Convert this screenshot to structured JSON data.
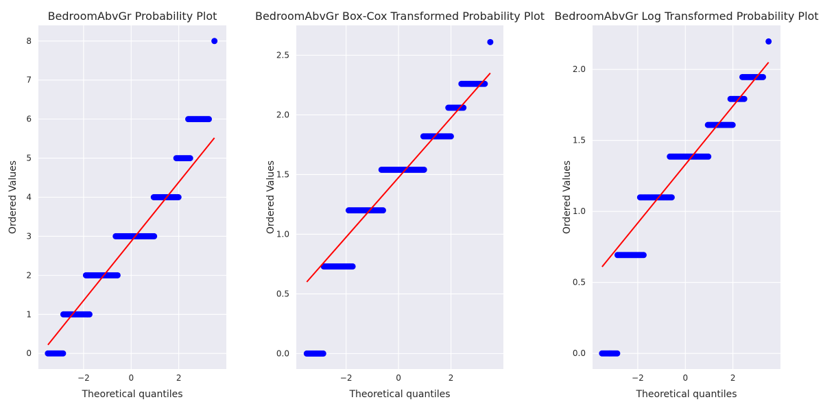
{
  "chart_data": [
    {
      "type": "scatter",
      "title": "BedroomAbvGr Probability Plot",
      "xlabel": "Theoretical quantiles",
      "ylabel": "Ordered Values",
      "xlim": [
        -3.9,
        4.0
      ],
      "ylim": [
        -0.4,
        8.4
      ],
      "xticks": [
        -2,
        0,
        2
      ],
      "xtick_labels": [
        "−2",
        "0",
        "2"
      ],
      "yticks": [
        0,
        1,
        2,
        3,
        4,
        5,
        6,
        7,
        8
      ],
      "ytick_labels": [
        "0",
        "1",
        "2",
        "3",
        "4",
        "5",
        "6",
        "7",
        "8"
      ],
      "grid": true,
      "point_color": "#0000ff",
      "line_color": "#ff0000",
      "series": [
        {
          "values_steps": [
            {
              "y": 0,
              "x_from": -3.5,
              "x_to": -2.85
            },
            {
              "y": 1,
              "x_from": -2.85,
              "x_to": -1.75
            },
            {
              "y": 2,
              "x_from": -1.9,
              "x_to": -0.55
            },
            {
              "y": 3,
              "x_from": -0.65,
              "x_to": 1.0
            },
            {
              "y": 4,
              "x_from": 0.95,
              "x_to": 2.0
            },
            {
              "y": 5,
              "x_from": 1.9,
              "x_to": 2.5
            },
            {
              "y": 6,
              "x_from": 2.4,
              "x_to": 3.3
            }
          ],
          "outliers": [
            {
              "x": 3.5,
              "y": 8
            }
          ]
        }
      ],
      "fit_line": {
        "x": [
          -3.5,
          3.5
        ],
        "y": [
          0.22,
          5.52
        ]
      }
    },
    {
      "type": "scatter",
      "title": "BedroomAbvGr Box-Cox Transformed Probability Plot",
      "xlabel": "Theoretical quantiles",
      "ylabel": "Ordered Values",
      "xlim": [
        -3.9,
        4.0
      ],
      "ylim": [
        -0.13,
        2.75
      ],
      "xticks": [
        -2,
        0,
        2
      ],
      "xtick_labels": [
        "−2",
        "0",
        "2"
      ],
      "yticks": [
        0.0,
        0.5,
        1.0,
        1.5,
        2.0,
        2.5
      ],
      "ytick_labels": [
        "0.0",
        "0.5",
        "1.0",
        "1.5",
        "2.0",
        "2.5"
      ],
      "grid": true,
      "point_color": "#0000ff",
      "line_color": "#ff0000",
      "series": [
        {
          "values_steps": [
            {
              "y": 0.0,
              "x_from": -3.5,
              "x_to": -2.85
            },
            {
              "y": 0.73,
              "x_from": -2.85,
              "x_to": -1.75
            },
            {
              "y": 1.2,
              "x_from": -1.9,
              "x_to": -0.55
            },
            {
              "y": 1.54,
              "x_from": -0.65,
              "x_to": 1.0
            },
            {
              "y": 1.82,
              "x_from": 0.95,
              "x_to": 2.0
            },
            {
              "y": 2.06,
              "x_from": 1.9,
              "x_to": 2.5
            },
            {
              "y": 2.26,
              "x_from": 2.4,
              "x_to": 3.3
            }
          ],
          "outliers": [
            {
              "x": 3.5,
              "y": 2.61
            }
          ]
        }
      ],
      "fit_line": {
        "x": [
          -3.5,
          3.5
        ],
        "y": [
          0.6,
          2.35
        ]
      }
    },
    {
      "type": "scatter",
      "title": "BedroomAbvGr Log Transformed Probability Plot",
      "xlabel": "Theoretical quantiles",
      "ylabel": "Ordered Values",
      "xlim": [
        -3.9,
        4.0
      ],
      "ylim": [
        -0.11,
        2.31
      ],
      "xticks": [
        -2,
        0,
        2
      ],
      "xtick_labels": [
        "−2",
        "0",
        "2"
      ],
      "yticks": [
        0.0,
        0.5,
        1.0,
        1.5,
        2.0
      ],
      "ytick_labels": [
        "0.0",
        "0.5",
        "1.0",
        "1.5",
        "2.0"
      ],
      "grid": true,
      "point_color": "#0000ff",
      "line_color": "#ff0000",
      "series": [
        {
          "values_steps": [
            {
              "y": 0.0,
              "x_from": -3.5,
              "x_to": -2.85
            },
            {
              "y": 0.693,
              "x_from": -2.85,
              "x_to": -1.75
            },
            {
              "y": 1.099,
              "x_from": -1.9,
              "x_to": -0.55
            },
            {
              "y": 1.386,
              "x_from": -0.65,
              "x_to": 1.0
            },
            {
              "y": 1.609,
              "x_from": 0.95,
              "x_to": 2.0
            },
            {
              "y": 1.792,
              "x_from": 1.9,
              "x_to": 2.5
            },
            {
              "y": 1.946,
              "x_from": 2.4,
              "x_to": 3.3
            }
          ],
          "outliers": [
            {
              "x": 3.5,
              "y": 2.197
            }
          ]
        }
      ],
      "fit_line": {
        "x": [
          -3.5,
          3.5
        ],
        "y": [
          0.61,
          2.05
        ]
      }
    }
  ]
}
